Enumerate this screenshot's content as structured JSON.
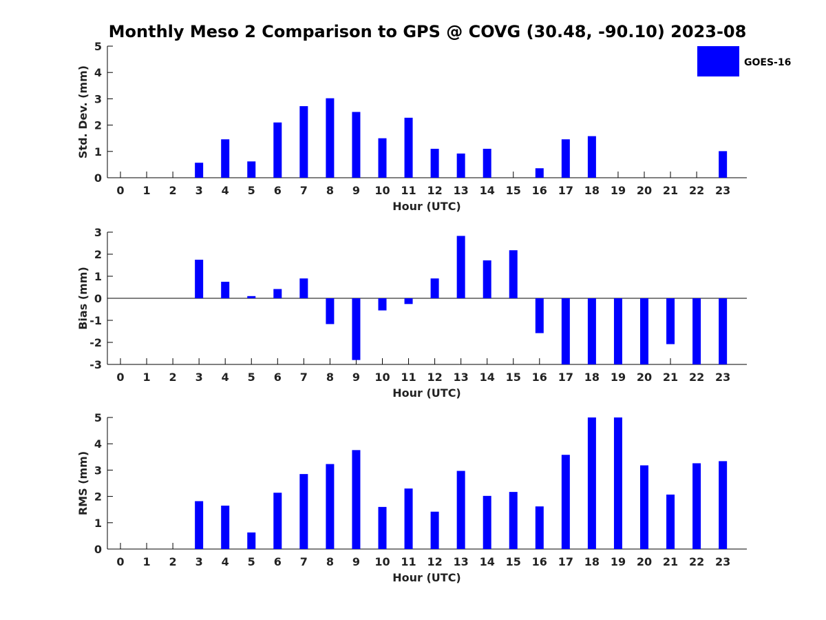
{
  "chart_data": {
    "title": "Monthly Meso 2 Comparison to GPS @ COVG (30.48, -90.10) 2023-08",
    "legend": [
      {
        "label": "GOES-16",
        "color": "#0000ff"
      }
    ],
    "legend_position": "top-right",
    "panels": [
      {
        "type": "bar",
        "ylabel": "Std. Dev. (mm)",
        "xlabel": "Hour (UTC)",
        "ylim": [
          0,
          5
        ],
        "yticks": [
          "0",
          "1",
          "2",
          "3",
          "4",
          "5"
        ],
        "categories": [
          "0",
          "1",
          "2",
          "3",
          "4",
          "5",
          "6",
          "7",
          "8",
          "9",
          "10",
          "11",
          "12",
          "13",
          "14",
          "15",
          "16",
          "17",
          "18",
          "19",
          "20",
          "21",
          "22",
          "23"
        ],
        "series": [
          {
            "name": "GOES-16",
            "values": [
              null,
              null,
              null,
              0.57,
              1.46,
              0.62,
              2.1,
              2.72,
              3.02,
              2.5,
              1.5,
              2.28,
              1.1,
              0.92,
              1.1,
              null,
              0.36,
              1.46,
              1.58,
              null,
              null,
              null,
              null,
              1.01
            ]
          }
        ]
      },
      {
        "type": "bar",
        "ylabel": "Bias (mm)",
        "xlabel": "Hour (UTC)",
        "ylim": [
          -3,
          3
        ],
        "yticks": [
          "-3",
          "-2",
          "-1",
          "0",
          "1",
          "2",
          "3"
        ],
        "zero_line": true,
        "categories": [
          "0",
          "1",
          "2",
          "3",
          "4",
          "5",
          "6",
          "7",
          "8",
          "9",
          "10",
          "11",
          "12",
          "13",
          "14",
          "15",
          "16",
          "17",
          "18",
          "19",
          "20",
          "21",
          "22",
          "23"
        ],
        "series": [
          {
            "name": "GOES-16",
            "values": [
              null,
              null,
              null,
              1.75,
              0.75,
              0.1,
              0.42,
              0.9,
              -1.17,
              -2.8,
              -0.55,
              -0.26,
              0.9,
              2.83,
              1.72,
              2.18,
              -1.58,
              -3,
              -3,
              -3,
              -3,
              -2.08,
              -3,
              -3
            ]
          }
        ]
      },
      {
        "type": "bar",
        "ylabel": "RMS (mm)",
        "xlabel": "Hour (UTC)",
        "ylim": [
          0,
          5
        ],
        "yticks": [
          "0",
          "1",
          "2",
          "3",
          "4",
          "5"
        ],
        "categories": [
          "0",
          "1",
          "2",
          "3",
          "4",
          "5",
          "6",
          "7",
          "8",
          "9",
          "10",
          "11",
          "12",
          "13",
          "14",
          "15",
          "16",
          "17",
          "18",
          "19",
          "20",
          "21",
          "22",
          "23"
        ],
        "series": [
          {
            "name": "GOES-16",
            "values": [
              null,
              null,
              null,
              1.82,
              1.65,
              0.63,
              2.14,
              2.85,
              3.23,
              3.76,
              1.6,
              2.3,
              1.42,
              2.97,
              2.02,
              2.17,
              1.62,
              3.58,
              5,
              5,
              3.18,
              2.07,
              3.26,
              3.34
            ]
          }
        ]
      }
    ]
  }
}
